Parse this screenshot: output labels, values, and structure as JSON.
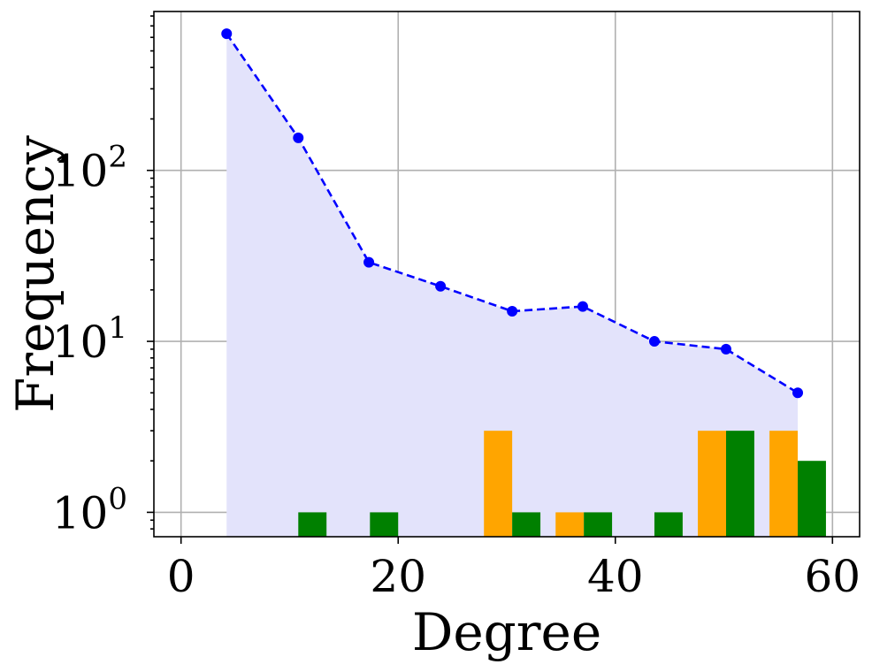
{
  "chart_data": {
    "type": "bar",
    "xlabel": "Degree",
    "ylabel": "Frequency",
    "xlim": [
      -2.5,
      62.5
    ],
    "ylim": [
      0.72,
      850
    ],
    "yscale": "log",
    "grid": true,
    "x_ticks": [
      0,
      20,
      40,
      60
    ],
    "y_ticks": [
      {
        "value": 1,
        "base": "10",
        "exp": "0"
      },
      {
        "value": 10,
        "base": "10",
        "exp": "1"
      },
      {
        "value": 100,
        "base": "10",
        "exp": "2"
      }
    ],
    "line_series": {
      "style": "dashed",
      "marker": "circle",
      "color": "#0000ff",
      "fill_color": "#e3e3fb",
      "x": [
        4.2,
        10.8,
        17.3,
        23.9,
        30.5,
        37.0,
        43.6,
        50.2,
        56.8
      ],
      "y": [
        630,
        155,
        29,
        21,
        15,
        16,
        10,
        9,
        5
      ]
    },
    "bar_width": 2.6,
    "bar_series": [
      {
        "color": "#ffa500",
        "bars": [
          {
            "x": 29.2,
            "y": 3
          },
          {
            "x": 35.8,
            "y": 1
          },
          {
            "x": 48.9,
            "y": 3
          },
          {
            "x": 55.5,
            "y": 3
          }
        ]
      },
      {
        "color": "#008000",
        "bars": [
          {
            "x": 12.1,
            "y": 1
          },
          {
            "x": 18.7,
            "y": 1
          },
          {
            "x": 31.8,
            "y": 1
          },
          {
            "x": 38.4,
            "y": 1
          },
          {
            "x": 44.9,
            "y": 1
          },
          {
            "x": 51.5,
            "y": 3
          },
          {
            "x": 58.1,
            "y": 2
          }
        ]
      }
    ]
  }
}
